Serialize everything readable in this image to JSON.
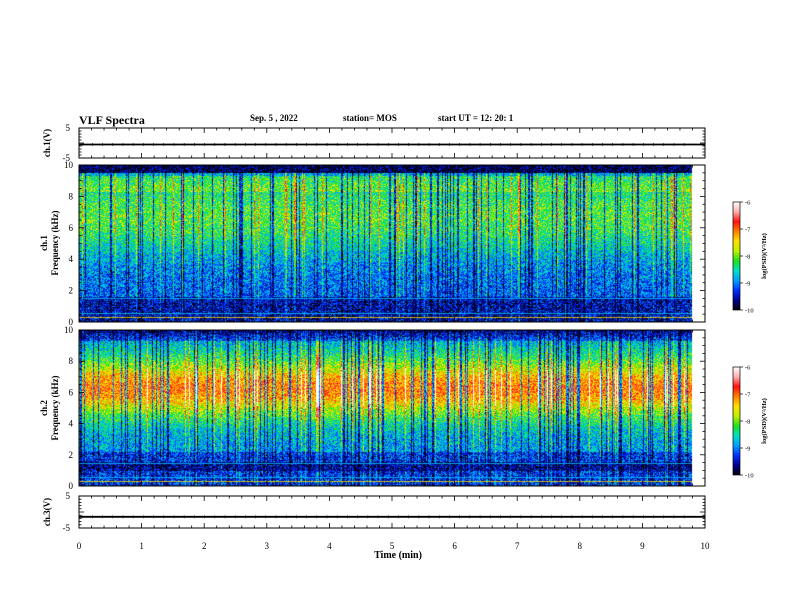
{
  "header": {
    "title": "VLF Spectra",
    "date": "Sep. 5 , 2022",
    "station": "station= MOS",
    "start_ut": "start UT = 12: 20: 1"
  },
  "colors": {
    "colormap": [
      "#000000",
      "#000090",
      "#0030ff",
      "#00a0ff",
      "#00e0c0",
      "#20e020",
      "#c0f000",
      "#ffe000",
      "#ff8000",
      "#ff1010",
      "#ffb0b0",
      "#ffffff"
    ],
    "axis": "#000000"
  },
  "chart_data": [
    {
      "id": "ch1-voltage",
      "type": "line",
      "ylabel": "ch.1(V)",
      "ylim": [
        -5,
        5
      ],
      "y_ticks": [
        "5",
        "-5"
      ],
      "xlim": [
        0,
        10
      ],
      "level": -0.5
    },
    {
      "id": "ch1-spectrogram",
      "type": "heatmap",
      "ylabel_line1": "ch.1",
      "ylabel_line2": "Frequency (kHz)",
      "ylim": [
        0,
        10
      ],
      "y_ticks": [
        "0",
        "2",
        "4",
        "6",
        "8",
        "10"
      ],
      "xlim": [
        0,
        10
      ],
      "data_end_min": 9.8,
      "colorbar": {
        "range": [
          -10,
          -6
        ],
        "ticks": [
          "-6",
          "-7",
          "-8",
          "-9",
          "-10"
        ],
        "label": "log(PSD)(V²/Hz)"
      }
    },
    {
      "id": "ch2-spectrogram",
      "type": "heatmap",
      "ylabel_line1": "ch.2",
      "ylabel_line2": "Frequency (kHz)",
      "ylim": [
        0,
        10
      ],
      "y_ticks": [
        "0",
        "2",
        "4",
        "6",
        "8",
        "10"
      ],
      "xlim": [
        0,
        10
      ],
      "data_end_min": 9.8,
      "colorbar": {
        "range": [
          -10,
          -6
        ],
        "ticks": [
          "-6",
          "-7",
          "-8",
          "-9",
          "-10"
        ],
        "label": "log(PSD)(V²/Hz)"
      }
    },
    {
      "id": "ch3-voltage",
      "type": "line",
      "ylabel": "ch.3(V)",
      "ylim": [
        -5,
        5
      ],
      "y_ticks": [
        "5",
        "-5"
      ],
      "xlim": [
        0,
        10
      ],
      "level": -1.5
    },
    {
      "id": "time-axis",
      "type": "axis",
      "xlabel": "Time (min)",
      "x_ticks": [
        "0",
        "1",
        "2",
        "3",
        "4",
        "5",
        "6",
        "7",
        "8",
        "9",
        "10"
      ]
    }
  ]
}
